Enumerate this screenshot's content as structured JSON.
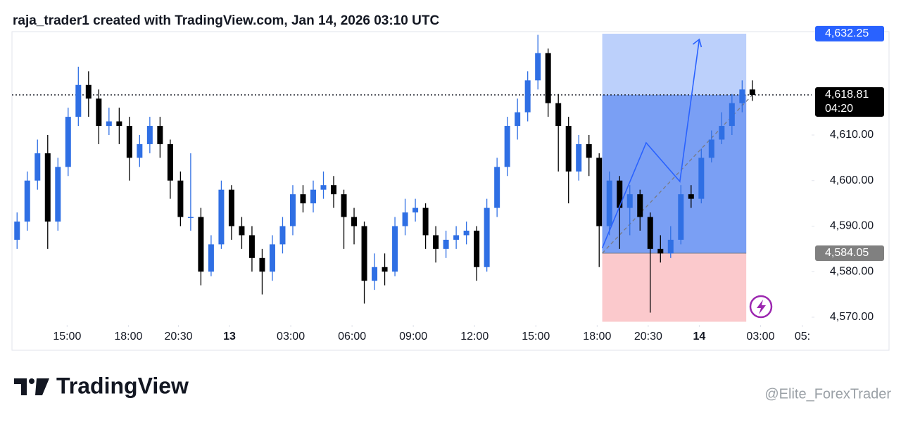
{
  "header": {
    "title": "raja_trader1 created with TradingView.com, Jan 14, 2026 03:10 UTC"
  },
  "chart_data": {
    "type": "candlestick",
    "x": [
      0,
      1,
      2,
      3,
      4,
      5,
      6,
      7,
      8,
      9,
      10,
      11,
      12,
      13,
      14,
      15,
      16,
      17,
      18,
      19,
      20,
      21,
      22,
      23,
      24,
      25,
      26,
      27,
      28,
      29,
      30,
      31,
      32,
      33,
      34,
      35,
      36,
      37,
      38,
      39,
      40,
      41,
      42,
      43,
      44,
      45,
      46,
      47,
      48,
      49,
      50,
      51,
      52,
      53,
      54,
      55,
      56,
      57,
      58,
      59,
      60,
      61,
      62,
      63,
      64,
      65,
      66,
      67,
      68,
      69,
      70,
      71,
      72
    ],
    "open": [
      4587,
      4591,
      4600,
      4606,
      4591,
      4603,
      4614,
      4621,
      4618,
      4612,
      4613,
      4612,
      4605,
      4608,
      4612,
      4608,
      4600,
      4592,
      4592,
      4580,
      4586,
      4598,
      4590,
      4588,
      4583,
      4580,
      4586,
      4590,
      4597,
      4595,
      4598,
      4599,
      4597,
      4592,
      4590,
      4578,
      4581,
      4580,
      4590,
      4593,
      4594,
      4588,
      4585,
      4587,
      4588,
      4589,
      4581,
      4594,
      4603,
      4612,
      4615,
      4622,
      4628,
      4617,
      4612,
      4602,
      4608,
      4605,
      4590,
      4600,
      4594,
      4597,
      4592,
      4585,
      4584,
      4587,
      4597,
      4596,
      4605,
      4609,
      4612,
      4617,
      4620
    ],
    "high": [
      4593,
      4602,
      4609,
      4610,
      4605,
      4616,
      4625,
      4624,
      4620,
      4616,
      4616,
      4614,
      4610,
      4614,
      4614,
      4609,
      4602,
      4606,
      4594,
      4588,
      4600,
      4599,
      4592,
      4590,
      4585,
      4588,
      4592,
      4599,
      4599,
      4600,
      4602,
      4601,
      4598,
      4594,
      4591,
      4584,
      4584,
      4592,
      4596,
      4596,
      4595,
      4590,
      4589,
      4590,
      4591,
      4590,
      4596,
      4605,
      4614,
      4618,
      4624,
      4632,
      4629,
      4619,
      4614,
      4610,
      4610,
      4606,
      4602,
      4601,
      4599,
      4598,
      4593,
      4588,
      4590,
      4599,
      4599,
      4607,
      4611,
      4615,
      4619,
      4622,
      4622
    ],
    "low": [
      4585,
      4589,
      4598,
      4585,
      4589,
      4601,
      4612,
      4614,
      4608,
      4610,
      4608,
      4600,
      4603,
      4606,
      4605,
      4596,
      4590,
      4589,
      4577,
      4579,
      4585,
      4587,
      4585,
      4580,
      4575,
      4578,
      4584,
      4588,
      4593,
      4593,
      4596,
      4594,
      4585,
      4586,
      4573,
      4576,
      4577,
      4579,
      4588,
      4591,
      4585,
      4582,
      4583,
      4585,
      4586,
      4578,
      4580,
      4592,
      4601,
      4609,
      4613,
      4620,
      4614,
      4602,
      4595,
      4600,
      4601,
      4581,
      4588,
      4585,
      4588,
      4589,
      4571,
      4582,
      4583,
      4586,
      4594,
      4595,
      4604,
      4608,
      4610,
      4615,
      4617.5
    ],
    "close": [
      4591,
      4600,
      4606,
      4591,
      4603,
      4614,
      4621,
      4618,
      4612,
      4613,
      4612,
      4605,
      4608,
      4612,
      4608,
      4600,
      4592,
      4592,
      4580,
      4586,
      4598,
      4590,
      4588,
      4583,
      4580,
      4586,
      4590,
      4597,
      4595,
      4598,
      4599,
      4597,
      4592,
      4590,
      4578,
      4581,
      4580,
      4590,
      4593,
      4594,
      4588,
      4585,
      4587,
      4588,
      4589,
      4581,
      4594,
      4603,
      4612,
      4615,
      4622,
      4628,
      4617,
      4612,
      4602,
      4608,
      4605,
      4590,
      4600,
      4594,
      4597,
      4592,
      4585,
      4584,
      4587,
      4597,
      4596,
      4605,
      4609,
      4612,
      4617,
      4620,
      4618.81
    ],
    "up_color": "#2f6fe4",
    "down_color": "#000000",
    "xlim": [
      -0.5,
      77.8
    ],
    "ylim": [
      4568.3,
      4632.7
    ],
    "xticks": [
      {
        "value": 4.9,
        "label": "15:00"
      },
      {
        "value": 10.9,
        "label": "18:00"
      },
      {
        "value": 15.8,
        "label": "20:30"
      },
      {
        "value": 20.8,
        "label": "13"
      },
      {
        "value": 26.8,
        "label": "03:00"
      },
      {
        "value": 32.8,
        "label": "06:00"
      },
      {
        "value": 38.8,
        "label": "09:00"
      },
      {
        "value": 44.8,
        "label": "12:00"
      },
      {
        "value": 50.8,
        "label": "15:00"
      },
      {
        "value": 56.8,
        "label": "18:00"
      },
      {
        "value": 61.8,
        "label": "20:30"
      },
      {
        "value": 66.8,
        "label": "14"
      },
      {
        "value": 72.8,
        "label": "03:00"
      },
      {
        "value": 76.9,
        "label": "05:"
      }
    ],
    "yticks": [
      {
        "value": 4610,
        "label": "4,610.00"
      },
      {
        "value": 4600,
        "label": "4,600.00"
      },
      {
        "value": 4590,
        "label": "4,590.00"
      },
      {
        "value": 4580,
        "label": "4,580.00"
      },
      {
        "value": 4570,
        "label": "4,570.00"
      }
    ],
    "price_labels": [
      {
        "value": 4632.25,
        "label": "4,632.25",
        "color": "#2962ff"
      },
      {
        "value": 4618.81,
        "label": "4,618.81",
        "sublabel": "04:20",
        "color": "#000000"
      },
      {
        "value": 4584.05,
        "label": "4,584.05",
        "color": "#808080"
      }
    ],
    "position": {
      "start": 57.3,
      "end": 71.4,
      "stop": 4569
    },
    "projection": {
      "x": [
        57.3,
        61.6,
        64.9,
        66.8
      ],
      "y": [
        4585.2,
        4608.3,
        4599.8,
        4631.0
      ]
    }
  },
  "footer": {
    "logo": "TradingView",
    "watermark": "@Elite_ForexTrader"
  }
}
